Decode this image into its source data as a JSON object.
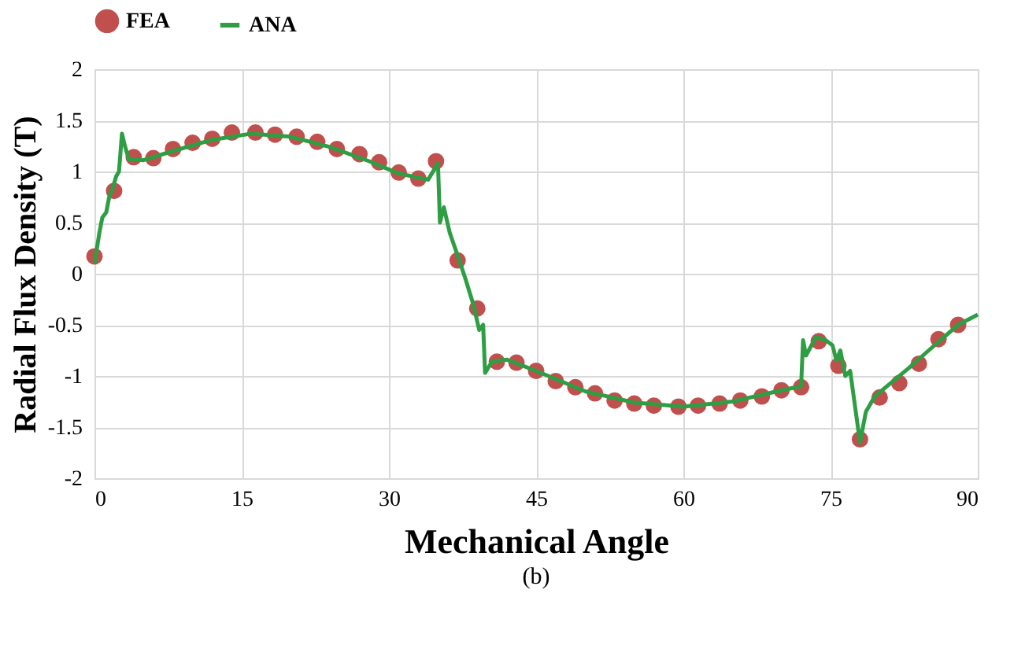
{
  "chart_data": {
    "type": "scatter",
    "xlabel": "Mechanical Angle",
    "ylabel": "Radial Flux Density (T)",
    "annotations": [
      "(b)"
    ],
    "xlim": [
      0,
      90
    ],
    "xticks": [
      0,
      15,
      30,
      45,
      60,
      75,
      90
    ],
    "ylim": [
      -2,
      2
    ],
    "yticks": [
      -2,
      -1.5,
      -1,
      -0.5,
      0,
      0.5,
      1,
      1.5,
      2
    ],
    "grid": true,
    "legend": "top",
    "series": [
      {
        "name": "FEA",
        "marker": "circle",
        "color": "#c0504d",
        "x": [
          0,
          2,
          4,
          6,
          8,
          10,
          12,
          14,
          16.4,
          18.4,
          20.6,
          22.7,
          24.7,
          27,
          29,
          31,
          33,
          34.8,
          37,
          39,
          41,
          43,
          45,
          47,
          49,
          51,
          53,
          55,
          57,
          59.5,
          61.5,
          63.7,
          65.8,
          68,
          70,
          72,
          73.8,
          75.8,
          78,
          80,
          82,
          84,
          86,
          88
        ],
        "values": [
          0.17,
          0.81,
          1.14,
          1.13,
          1.22,
          1.28,
          1.32,
          1.38,
          1.38,
          1.36,
          1.34,
          1.29,
          1.22,
          1.17,
          1.09,
          0.99,
          0.93,
          1.1,
          0.13,
          -0.34,
          -0.86,
          -0.87,
          -0.95,
          -1.05,
          -1.11,
          -1.17,
          -1.24,
          -1.27,
          -1.29,
          -1.3,
          -1.29,
          -1.27,
          -1.24,
          -1.2,
          -1.14,
          -1.11,
          -0.66,
          -0.9,
          -1.62,
          -1.21,
          -1.07,
          -0.88,
          -0.64,
          -0.5
        ]
      },
      {
        "name": "ANA",
        "type": "line",
        "marker": "none",
        "color": "#2e9e44",
        "line_style": "solid",
        "x": [
          0,
          0.5,
          0.8,
          1.2,
          1.5,
          1.9,
          2.2,
          2.5,
          2.8,
          3.1,
          3.5,
          5,
          8,
          12,
          16,
          20,
          24,
          28,
          31,
          34,
          35,
          35.2,
          35.6,
          36.2,
          37,
          37.8,
          38.6,
          39.2,
          39.6,
          39.8,
          40.5,
          42,
          45,
          50,
          55,
          60,
          65,
          70,
          72,
          72.2,
          72.5,
          73.5,
          74.5,
          75.2,
          75.6,
          76,
          76.5,
          77,
          77.5,
          78,
          78.6,
          79.5,
          81,
          83,
          85,
          88,
          90
        ],
        "values": [
          0.1,
          0.4,
          0.55,
          0.6,
          0.75,
          0.85,
          0.95,
          1.0,
          1.37,
          1.25,
          1.12,
          1.11,
          1.2,
          1.31,
          1.37,
          1.34,
          1.24,
          1.1,
          0.98,
          0.92,
          1.08,
          0.5,
          0.65,
          0.4,
          0.18,
          -0.05,
          -0.3,
          -0.55,
          -0.5,
          -0.97,
          -0.86,
          -0.84,
          -0.95,
          -1.15,
          -1.26,
          -1.3,
          -1.25,
          -1.14,
          -1.1,
          -0.65,
          -0.8,
          -0.62,
          -0.65,
          -0.7,
          -0.85,
          -0.75,
          -1.0,
          -0.95,
          -1.3,
          -1.65,
          -1.35,
          -1.2,
          -1.08,
          -0.92,
          -0.75,
          -0.5,
          -0.4
        ]
      }
    ]
  }
}
